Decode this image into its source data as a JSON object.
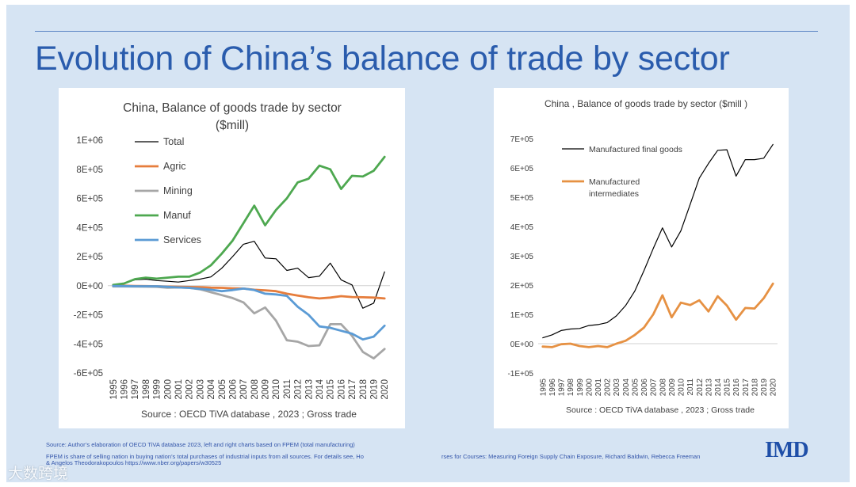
{
  "slide": {
    "title": "Evolution of China’s balance of trade by sector",
    "footer_line1": "Source: Author’s elaboration of OECD    TiVA  database 2023, left and right charts based on FPEM (total manufacturing)",
    "footer_line2": "FPEM is share of selling nation in buying nation’s total purchases of industrial inputs from all sources. For details see, Ho",
    "footer_line2b": "rses for Courses: Measuring Foreign Supply Chain Exposure, Richard Baldwin, Rebecca Freeman",
    "footer_line3": "& Angelos Theodorakopoulos https://www.nber.org/papers/w30525",
    "logo": "IMD",
    "watermark": "大数跨境"
  },
  "chart_data": [
    {
      "type": "line",
      "title": "China, Balance of goods trade by sector",
      "subtitle": "($mill)",
      "source": "Source : OECD TiVA database , 2023 ; Gross trade",
      "x": [
        "1995",
        "1996",
        "1997",
        "1998",
        "1999",
        "2000",
        "2001",
        "2002",
        "2003",
        "2004",
        "2005",
        "2006",
        "2007",
        "2008",
        "2009",
        "2010",
        "2011",
        "2012",
        "2013",
        "2014",
        "2015",
        "2016",
        "2017",
        "2018",
        "2019",
        "2020"
      ],
      "ylim": [
        -600000,
        1000000
      ],
      "yticks": [
        1000000,
        800000,
        600000,
        400000,
        200000,
        0,
        -200000,
        -400000,
        -600000
      ],
      "ytick_labels": [
        "1E+06",
        "8E+05",
        "6E+05",
        "4E+05",
        "2E+05",
        "0E+00",
        "-2E+05",
        "-4E+05",
        "-6E+05"
      ],
      "legend_position": "top-left",
      "series": [
        {
          "name": "Total",
          "color": "#000000",
          "width": 1.2,
          "values": [
            5000,
            15000,
            40000,
            45000,
            35000,
            30000,
            25000,
            35000,
            45000,
            60000,
            120000,
            200000,
            285000,
            305000,
            190000,
            185000,
            105000,
            120000,
            55000,
            65000,
            155000,
            40000,
            5000,
            -155000,
            -120000,
            95000
          ]
        },
        {
          "name": "Agric",
          "color": "#e67d3c",
          "width": 2.8,
          "values": [
            0,
            0,
            -2000,
            -3000,
            -4000,
            -6000,
            -8000,
            -9000,
            -10000,
            -14000,
            -15000,
            -18000,
            -20000,
            -28000,
            -32000,
            -38000,
            -55000,
            -68000,
            -80000,
            -88000,
            -82000,
            -72000,
            -78000,
            -80000,
            -82000,
            -88000
          ]
        },
        {
          "name": "Mining",
          "color": "#a6a6a6",
          "width": 2.8,
          "values": [
            -5000,
            -5000,
            -6000,
            -7000,
            -8000,
            -14000,
            -12000,
            -15000,
            -25000,
            -45000,
            -65000,
            -85000,
            -115000,
            -190000,
            -150000,
            -240000,
            -375000,
            -385000,
            -415000,
            -410000,
            -265000,
            -265000,
            -345000,
            -455000,
            -500000,
            -435000
          ]
        },
        {
          "name": "Manuf",
          "color": "#4ea850",
          "width": 2.8,
          "values": [
            5000,
            15000,
            45000,
            55000,
            48000,
            55000,
            62000,
            62000,
            90000,
            140000,
            220000,
            310000,
            430000,
            550000,
            415000,
            520000,
            600000,
            710000,
            735000,
            825000,
            800000,
            665000,
            755000,
            750000,
            790000,
            885000
          ]
        },
        {
          "name": "Services",
          "color": "#5b9bd5",
          "width": 2.8,
          "values": [
            -2000,
            -3000,
            -4000,
            -4000,
            -4000,
            -8000,
            -12000,
            -15000,
            -22000,
            -28000,
            -38000,
            -30000,
            -20000,
            -30000,
            -55000,
            -60000,
            -70000,
            -145000,
            -200000,
            -280000,
            -290000,
            -310000,
            -330000,
            -370000,
            -350000,
            -275000
          ]
        }
      ]
    },
    {
      "type": "line",
      "title": "China , Balance of goods trade by sector    ($mill )",
      "source": "Source : OECD TiVA database , 2023 ; Gross trade",
      "x": [
        "1995",
        "1996",
        "1997",
        "1998",
        "1999",
        "2000",
        "2001",
        "2002",
        "2003",
        "2004",
        "2005",
        "2006",
        "2007",
        "2008",
        "2009",
        "2010",
        "2011",
        "2012",
        "2013",
        "2014",
        "2015",
        "2016",
        "2017",
        "2018",
        "2019",
        "2020"
      ],
      "ylim": [
        -100000,
        700000
      ],
      "yticks": [
        700000,
        600000,
        500000,
        400000,
        300000,
        200000,
        100000,
        0,
        -100000
      ],
      "ytick_labels": [
        "7E+05",
        "6E+05",
        "5E+05",
        "4E+05",
        "3E+05",
        "2E+05",
        "1E+05",
        "0E+00",
        "-1E+05"
      ],
      "legend_position": "top-left",
      "series": [
        {
          "name": "Manufactured final goods",
          "color": "#000000",
          "width": 1.2,
          "values": [
            20000,
            30000,
            45000,
            50000,
            52000,
            62000,
            65000,
            72000,
            95000,
            130000,
            180000,
            250000,
            325000,
            395000,
            330000,
            385000,
            475000,
            565000,
            615000,
            660000,
            662000,
            572000,
            628000,
            628000,
            633000,
            680000
          ]
        },
        {
          "name": "Manufactured\nintermediates",
          "color": "#e69143",
          "width": 2.8,
          "values": [
            -10000,
            -12000,
            -2000,
            0,
            -8000,
            -12000,
            -8000,
            -12000,
            0,
            10000,
            30000,
            55000,
            100000,
            165000,
            90000,
            140000,
            132000,
            148000,
            110000,
            162000,
            130000,
            82000,
            122000,
            120000,
            155000,
            205000
          ]
        }
      ]
    }
  ]
}
